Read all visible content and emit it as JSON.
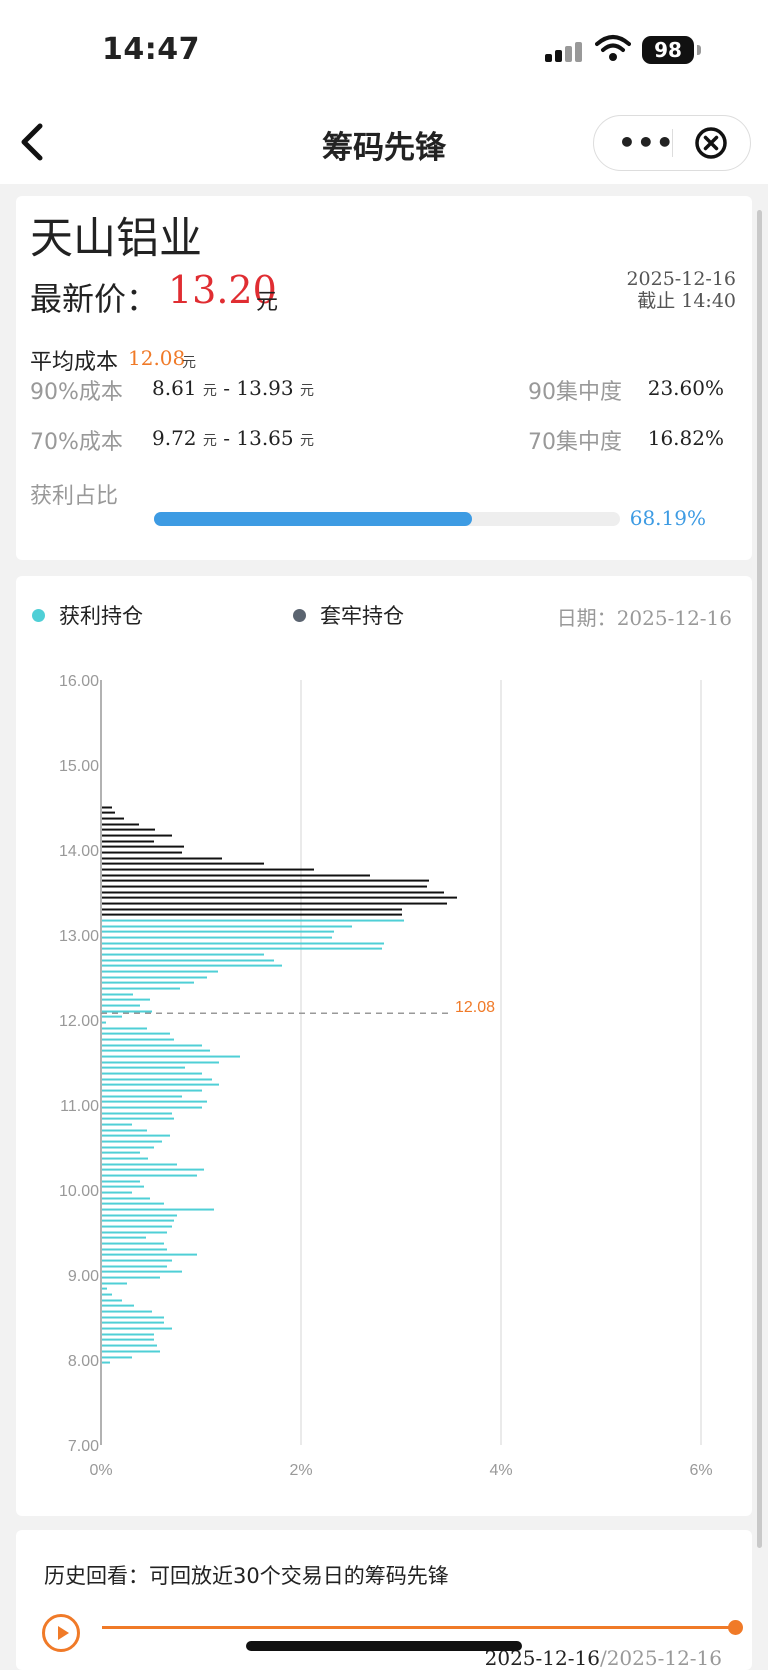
{
  "status_bar": {
    "time": "14:47",
    "battery": "98"
  },
  "nav": {
    "title": "筹码先锋"
  },
  "stock": {
    "name": "天山铝业",
    "price_label": "最新价：",
    "price": "13.20",
    "unit": "元",
    "date": "2025-12-16",
    "cutoff": "截止 14:40",
    "avg_label": "平均成本",
    "avg_value": "12.08",
    "avg_unit": "元",
    "rows": [
      {
        "label": "90%成本",
        "low": "8.61",
        "high": "13.93",
        "unit": "元",
        "sep": " - ",
        "conc_label": "90集中度",
        "conc": "23.60%"
      },
      {
        "label": "70%成本",
        "low": "9.72",
        "high": "13.65",
        "unit": "元",
        "sep": " - ",
        "conc_label": "70集中度",
        "conc": "16.82%"
      }
    ],
    "profit_label": "获利占比",
    "profit_pct": "68.19%",
    "profit_fraction": 0.6819
  },
  "chart": {
    "legend_profit": "获利持仓",
    "legend_trapped": "套牢持仓",
    "date_label": "日期：",
    "date": "2025-12-16",
    "colors": {
      "profit": "#4fcfd6",
      "trapped": "#111111",
      "legend_trapped_dot": "#5b6470",
      "avg_line": "#f07a28"
    }
  },
  "chart_data": {
    "type": "bar",
    "orientation": "horizontal",
    "ylim": [
      7.0,
      16.0
    ],
    "yticks": [
      "7.00",
      "8.00",
      "9.00",
      "10.00",
      "11.00",
      "12.00",
      "13.00",
      "14.00",
      "15.00",
      "16.00"
    ],
    "xlim": [
      0,
      6
    ],
    "xticks": [
      "0%",
      "2%",
      "4%",
      "6%"
    ],
    "avg_cost": 12.08,
    "avg_label": "12.08",
    "price_split": 13.2,
    "series": [
      {
        "name": "获利持仓",
        "prices": [
          7.97,
          8.03,
          8.1,
          8.17,
          8.24,
          8.3,
          8.37,
          8.44,
          8.5,
          8.57,
          8.64,
          8.7,
          8.77,
          8.84,
          8.9,
          8.97,
          9.04,
          9.1,
          9.17,
          9.24,
          9.3,
          9.37,
          9.44,
          9.5,
          9.57,
          9.64,
          9.7,
          9.77,
          9.84,
          9.9,
          9.97,
          10.04,
          10.1,
          10.17,
          10.24,
          10.3,
          10.37,
          10.44,
          10.5,
          10.57,
          10.64,
          10.7,
          10.77,
          10.84,
          10.9,
          10.97,
          11.04,
          11.1,
          11.17,
          11.24,
          11.3,
          11.37,
          11.44,
          11.5,
          11.57,
          11.64,
          11.7,
          11.77,
          11.84,
          11.9,
          11.97,
          12.04,
          12.1,
          12.17,
          12.24,
          12.3,
          12.37,
          12.44,
          12.5,
          12.57,
          12.64,
          12.7,
          12.77,
          12.84,
          12.9,
          12.97,
          13.04,
          13.1,
          13.17
        ],
        "values": [
          0.08,
          0.3,
          0.58,
          0.55,
          0.52,
          0.52,
          0.7,
          0.62,
          0.62,
          0.5,
          0.32,
          0.2,
          0.1,
          0.05,
          0.25,
          0.58,
          0.8,
          0.65,
          0.7,
          0.95,
          0.65,
          0.62,
          0.44,
          0.65,
          0.7,
          0.72,
          0.75,
          1.12,
          0.62,
          0.48,
          0.3,
          0.42,
          0.38,
          0.95,
          1.02,
          0.75,
          0.46,
          0.38,
          0.52,
          0.6,
          0.68,
          0.45,
          0.3,
          0.72,
          0.7,
          1.0,
          1.05,
          0.8,
          1.0,
          1.17,
          1.1,
          1.0,
          0.83,
          1.17,
          1.38,
          1.08,
          1.0,
          0.72,
          0.68,
          0.45,
          0.04,
          0.2,
          0.5,
          0.38,
          0.48,
          0.31,
          0.78,
          0.92,
          1.05,
          1.16,
          1.8,
          1.72,
          1.62,
          2.8,
          2.82,
          2.3,
          2.32,
          2.5,
          3.02
        ]
      },
      {
        "name": "套牢持仓",
        "prices": [
          13.24,
          13.3,
          13.37,
          13.44,
          13.5,
          13.57,
          13.64,
          13.7,
          13.77,
          13.84,
          13.9,
          13.97,
          14.04,
          14.1,
          14.17,
          14.24,
          14.3,
          14.37,
          14.44,
          14.5
        ],
        "values": [
          3.0,
          3.0,
          3.45,
          3.55,
          3.42,
          3.25,
          3.27,
          2.68,
          2.12,
          1.62,
          1.2,
          0.8,
          0.82,
          0.52,
          0.7,
          0.53,
          0.37,
          0.22,
          0.13,
          0.1
        ]
      }
    ]
  },
  "history": {
    "label": "历史回看：可回放近30个交易日的筹码先锋",
    "current": "2025-12-16",
    "sep": "/",
    "total": "2025-12-16"
  }
}
